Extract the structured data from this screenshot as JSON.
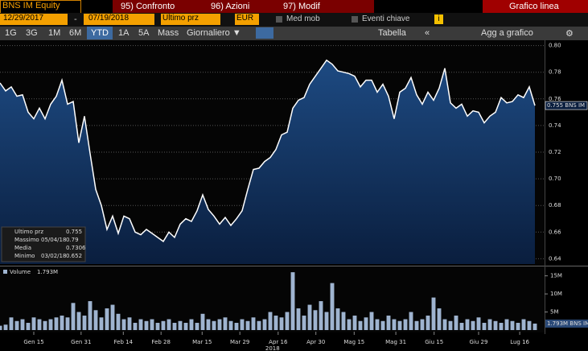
{
  "toolbar": {
    "security": "BNS IM Equity",
    "menu": [
      "95) Confronto",
      "96) Azioni",
      "97) Modif"
    ],
    "view": "Grafico linea",
    "start_date": "12/29/2017",
    "separator": "-",
    "end_date": "07/19/2018",
    "field": "Ultimo prz",
    "currency": "EUR",
    "options": [
      "Med mob",
      "Eventi chiave"
    ],
    "info": "i",
    "periods": [
      "1G",
      "3G",
      "1M",
      "6M",
      "YTD",
      "1A",
      "5A",
      "Mass"
    ],
    "frequency": "Giornaliero ▼",
    "table": "Tabella",
    "collapse": "«",
    "add_to_chart": "Agg a grafico"
  },
  "chart_data": [
    {
      "type": "area",
      "series": [
        {
          "name": "Ultimo prz",
          "color": "#ffffff",
          "values": [
            0.772,
            0.766,
            0.769,
            0.762,
            0.763,
            0.75,
            0.745,
            0.753,
            0.745,
            0.756,
            0.762,
            0.774,
            0.756,
            0.758,
            0.727,
            0.747,
            0.719,
            0.692,
            0.68,
            0.662,
            0.672,
            0.659,
            0.672,
            0.67,
            0.66,
            0.658,
            0.662,
            0.659,
            0.656,
            0.653,
            0.66,
            0.656,
            0.666,
            0.67,
            0.668,
            0.676,
            0.688,
            0.677,
            0.672,
            0.666,
            0.671,
            0.665,
            0.67,
            0.676,
            0.692,
            0.707,
            0.708,
            0.713,
            0.716,
            0.722,
            0.733,
            0.735,
            0.753,
            0.759,
            0.761,
            0.771,
            0.777,
            0.783,
            0.789,
            0.786,
            0.781,
            0.78,
            0.779,
            0.777,
            0.769,
            0.774,
            0.774,
            0.765,
            0.771,
            0.762,
            0.745,
            0.765,
            0.768,
            0.776,
            0.763,
            0.756,
            0.765,
            0.759,
            0.768,
            0.783,
            0.757,
            0.753,
            0.756,
            0.747,
            0.751,
            0.75,
            0.742,
            0.747,
            0.75,
            0.761,
            0.757,
            0.758,
            0.763,
            0.761,
            0.769,
            0.755
          ]
        }
      ],
      "xlim": [
        0,
        95
      ],
      "ylim": [
        0.636,
        0.804
      ],
      "yticks": [
        0.64,
        0.66,
        0.68,
        {
          "value": 0.7,
          "label": "0.70"
        },
        0.72,
        0.74,
        0.76,
        0.78,
        {
          "value": 0.8,
          "label": "0.80"
        }
      ],
      "grid": true,
      "last_label": "0.755 BNS IM",
      "legend": [
        {
          "label": "Ultimo prz",
          "value": 0.755
        },
        {
          "label": "Massimo",
          "date": "05/04/18",
          "value": 0.79
        },
        {
          "label": "Media",
          "value": 0.7306
        },
        {
          "label": "Minimo",
          "date": "03/02/18",
          "value": 0.652
        }
      ]
    },
    {
      "type": "bar",
      "series": [
        {
          "name": "Volume",
          "color": "#9fb4d0",
          "values": [
            1.2,
            1.5,
            3.5,
            2.5,
            3,
            2,
            3.5,
            3,
            2.5,
            3,
            3.5,
            4,
            3.5,
            7.5,
            5,
            4,
            8,
            5.5,
            3.5,
            6,
            7,
            4.5,
            3,
            3.5,
            2,
            3,
            2.5,
            3,
            2,
            2.5,
            3,
            2,
            2.5,
            2,
            3,
            2,
            4.5,
            3,
            2.5,
            3,
            3.5,
            2.5,
            2,
            3,
            2.5,
            3.5,
            2.5,
            3,
            5,
            4,
            3.5,
            5,
            16,
            6,
            4,
            7,
            5.5,
            8,
            5,
            13,
            6,
            5,
            3,
            4,
            2.5,
            3.5,
            5,
            3,
            2.5,
            4,
            3,
            2.5,
            3,
            5,
            2.5,
            3,
            4,
            9,
            6,
            3,
            2.5,
            4,
            2,
            3,
            2.5,
            3.5,
            2,
            3,
            2.5,
            2,
            3,
            2.5,
            2,
            3,
            2.5,
            1.793
          ]
        }
      ],
      "legend_value": "1.793M",
      "last_label": "1.793M BNS IM",
      "xlim": [
        0,
        95
      ],
      "ylim": [
        0,
        16.7
      ],
      "yticks": [
        {
          "value": 5,
          "label": "5M"
        },
        {
          "value": 10,
          "label": "10M"
        },
        {
          "value": 15,
          "label": "15M"
        }
      ],
      "xticks": [
        {
          "value": 6,
          "label": "Gen 15"
        },
        {
          "value": 14.4,
          "label": "Gen 31"
        },
        {
          "value": 21.9,
          "label": "Feb 14"
        },
        {
          "value": 28.6,
          "label": "Feb 28"
        },
        {
          "value": 35.9,
          "label": "Mar 15"
        },
        {
          "value": 42.6,
          "label": "Mar 29"
        },
        {
          "value": 49.4,
          "label": "Apr 16"
        },
        {
          "value": 56.1,
          "label": "Apr 30"
        },
        {
          "value": 62.9,
          "label": "Mag 15"
        },
        {
          "value": 70.3,
          "label": "Mag 31"
        },
        {
          "value": 77.1,
          "label": "Giu 15"
        },
        {
          "value": 85,
          "label": "Giu 29"
        },
        {
          "value": 92.3,
          "label": "Lug 16"
        }
      ],
      "year": "2018"
    }
  ]
}
